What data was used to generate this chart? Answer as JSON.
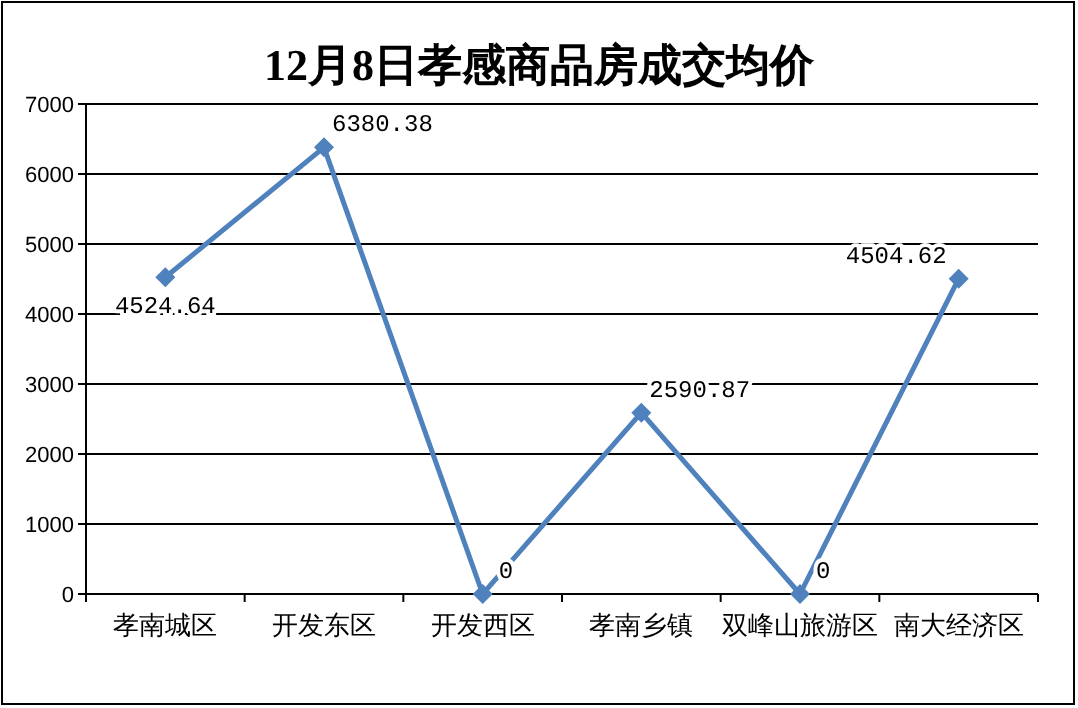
{
  "chart_data": {
    "type": "line",
    "title": "12月8日孝感商品房成交均价",
    "categories": [
      "孝南城区",
      "开发东区",
      "开发西区",
      "孝南乡镇",
      "双峰山旅游区",
      "南大经济区"
    ],
    "series": [
      {
        "color": "#4f81bd",
        "values": [
          4524.64,
          6380.38,
          0,
          2590.87,
          0,
          4504.62
        ]
      }
    ],
    "ylim": [
      0,
      7000
    ],
    "yticks": [
      0,
      1000,
      2000,
      3000,
      4000,
      5000,
      6000,
      7000
    ],
    "grid": "y",
    "marker": "diamond",
    "data_labels": true
  }
}
